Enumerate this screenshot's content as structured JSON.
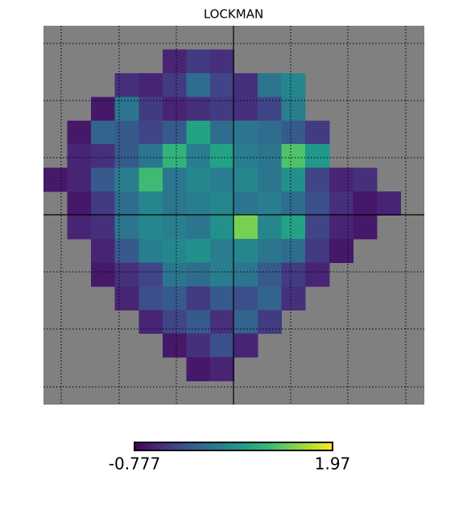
{
  "chart_data": {
    "type": "heatmap",
    "title": "LOCKMAN",
    "colormap": "viridis",
    "bad_color": "#808080",
    "zlim": [
      -0.777,
      1.97
    ],
    "values": [
      [
        null,
        null,
        null,
        null,
        null,
        null,
        null,
        null,
        null,
        null,
        null,
        null,
        null,
        null,
        null,
        null
      ],
      [
        null,
        null,
        null,
        null,
        null,
        -0.5,
        -0.3,
        -0.4,
        null,
        null,
        null,
        null,
        null,
        null,
        null,
        null
      ],
      [
        null,
        null,
        null,
        -0.4,
        -0.5,
        -0.3,
        0.2,
        -0.2,
        -0.4,
        0.3,
        0.5,
        null,
        null,
        null,
        null,
        null
      ],
      [
        null,
        null,
        -0.6,
        0.3,
        -0.3,
        -0.5,
        -0.4,
        -0.3,
        -0.4,
        -0.2,
        0.4,
        null,
        null,
        null,
        null,
        null
      ],
      [
        null,
        -0.6,
        0.1,
        0.0,
        -0.2,
        0.0,
        0.8,
        0.2,
        0.3,
        0.2,
        0.0,
        -0.3,
        null,
        null,
        null,
        null
      ],
      [
        null,
        -0.5,
        -0.4,
        0.0,
        0.3,
        1.0,
        0.4,
        0.8,
        0.4,
        0.3,
        1.2,
        0.7,
        null,
        null,
        null,
        null
      ],
      [
        -0.6,
        -0.5,
        0.0,
        0.4,
        1.1,
        0.3,
        0.5,
        0.4,
        0.5,
        0.3,
        0.6,
        -0.2,
        -0.5,
        -0.4,
        null,
        null
      ],
      [
        null,
        -0.6,
        -0.3,
        0.2,
        0.5,
        0.3,
        0.4,
        0.5,
        0.3,
        0.4,
        0.2,
        -0.1,
        -0.4,
        -0.6,
        -0.5,
        null
      ],
      [
        null,
        -0.5,
        -0.4,
        0.3,
        0.5,
        0.4,
        0.3,
        0.6,
        1.4,
        0.5,
        0.8,
        -0.2,
        -0.5,
        -0.6,
        null,
        null
      ],
      [
        null,
        null,
        -0.5,
        0.0,
        0.4,
        0.5,
        0.6,
        0.4,
        0.5,
        0.3,
        0.2,
        -0.3,
        -0.6,
        null,
        null,
        null
      ],
      [
        null,
        null,
        -0.6,
        -0.4,
        -0.2,
        0.3,
        0.2,
        0.4,
        0.3,
        0.0,
        -0.3,
        -0.5,
        null,
        null,
        null,
        null
      ],
      [
        null,
        null,
        null,
        -0.5,
        -0.1,
        0.0,
        -0.3,
        0.0,
        -0.1,
        0.1,
        -0.4,
        null,
        null,
        null,
        null,
        null
      ],
      [
        null,
        null,
        null,
        null,
        -0.5,
        -0.2,
        0.0,
        -0.4,
        0.1,
        -0.3,
        null,
        null,
        null,
        null,
        null,
        null
      ],
      [
        null,
        null,
        null,
        null,
        null,
        -0.6,
        -0.4,
        -0.1,
        -0.5,
        null,
        null,
        null,
        null,
        null,
        null,
        null
      ],
      [
        null,
        null,
        null,
        null,
        null,
        null,
        -0.6,
        -0.5,
        null,
        null,
        null,
        null,
        null,
        null,
        null,
        null
      ],
      [
        null,
        null,
        null,
        null,
        null,
        null,
        null,
        null,
        null,
        null,
        null,
        null,
        null,
        null,
        null,
        null
      ]
    ]
  }
}
